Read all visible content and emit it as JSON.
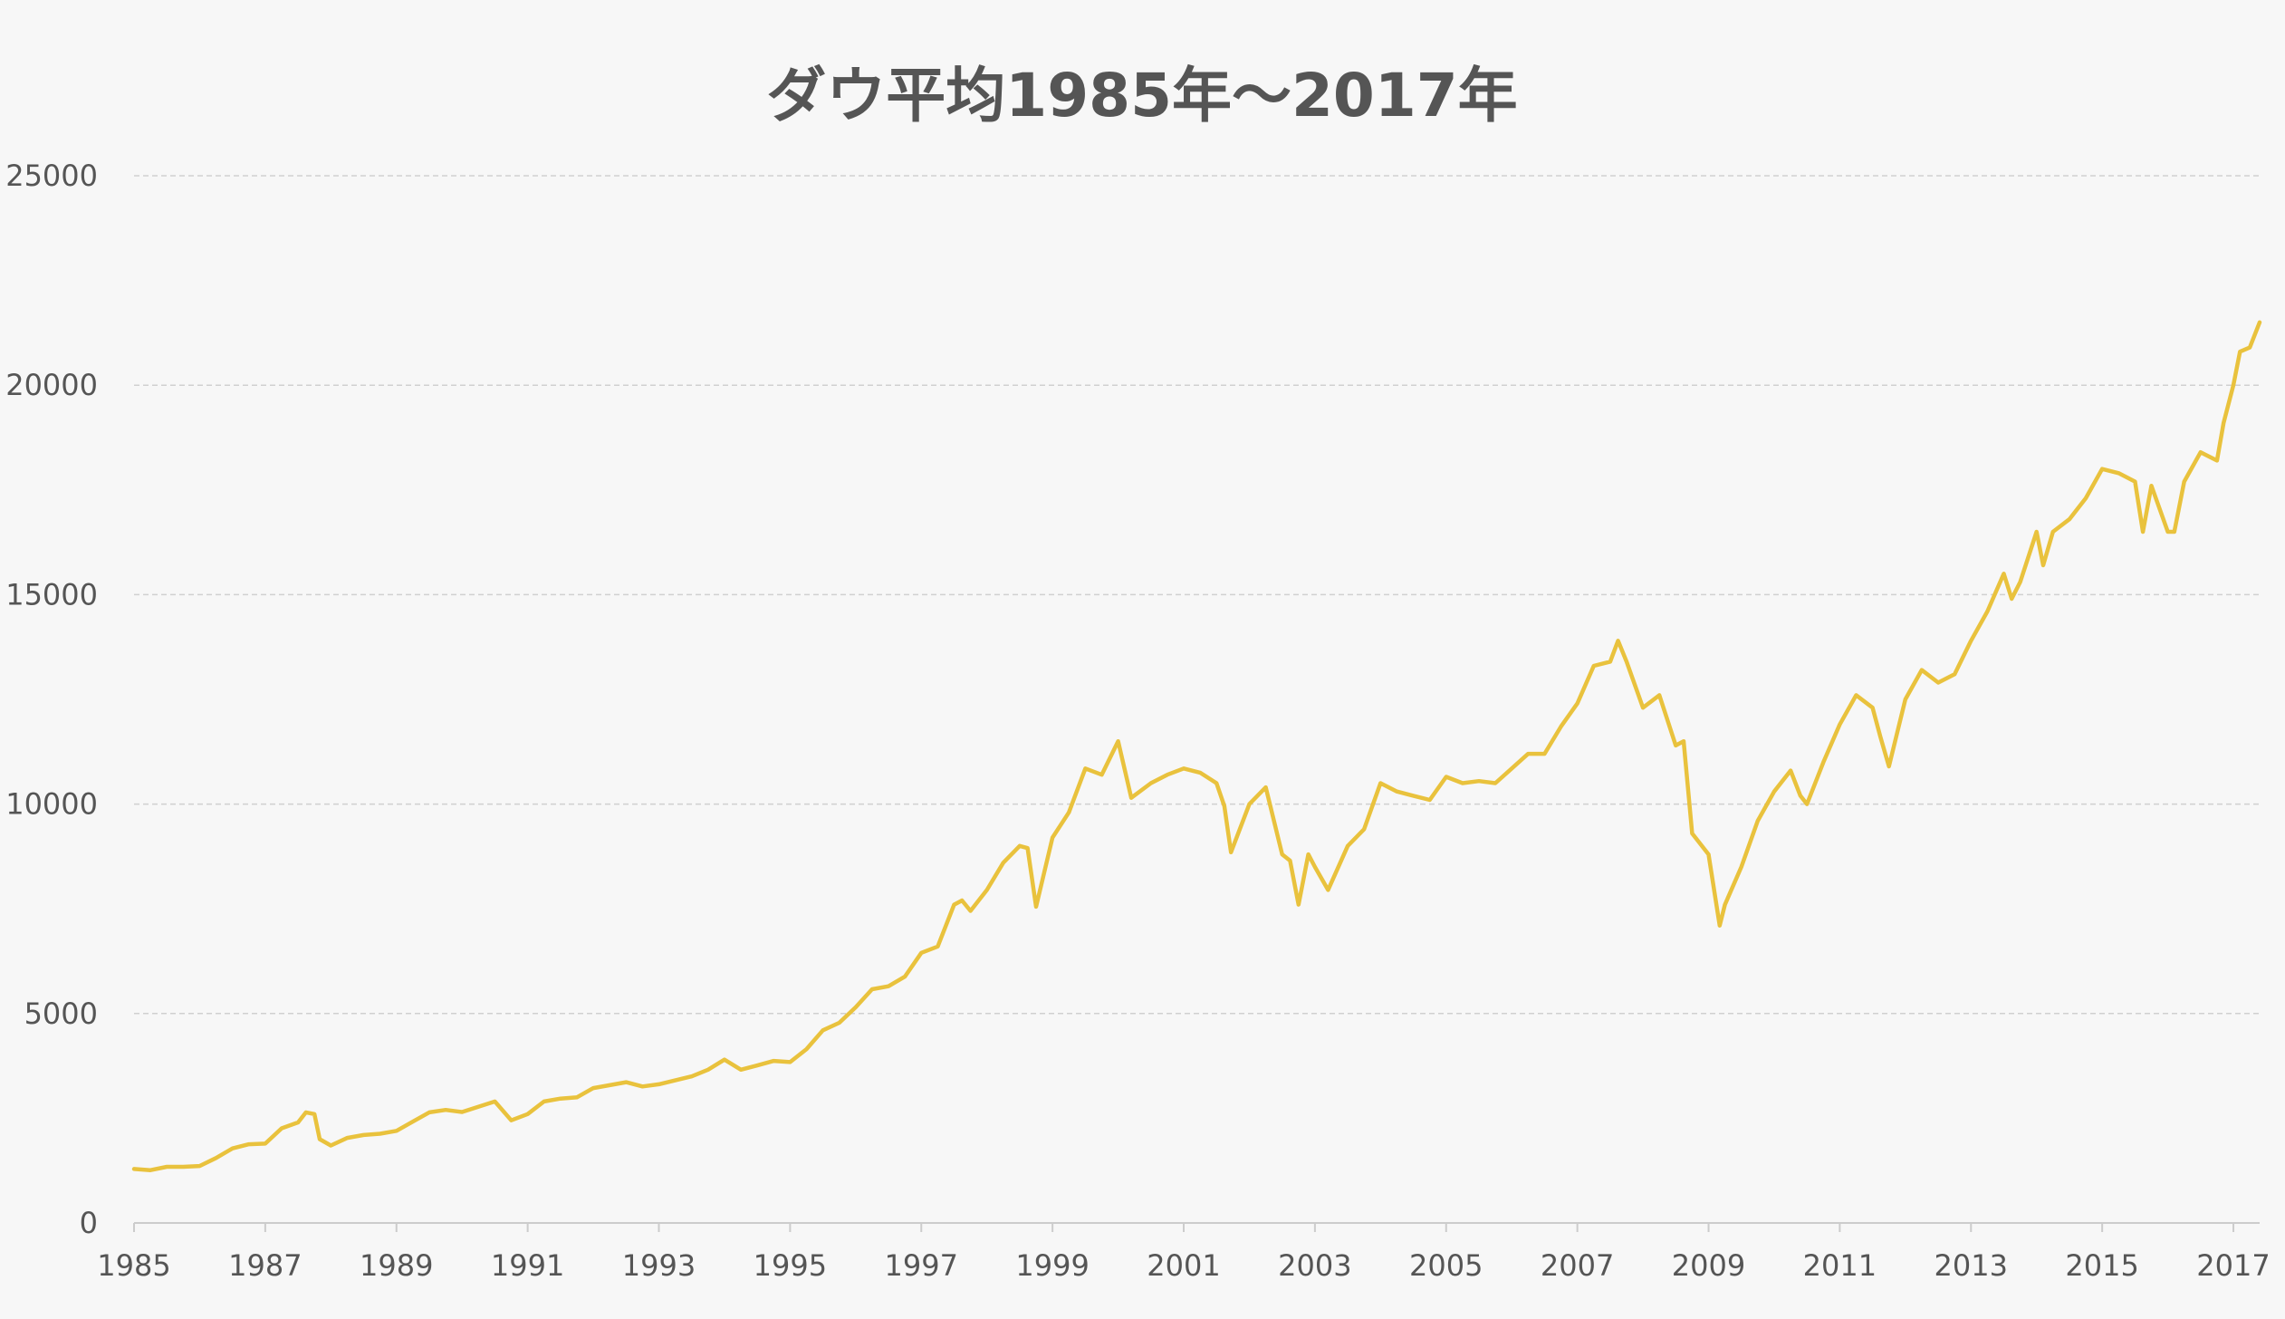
{
  "chart_data": {
    "type": "line",
    "title": "ダウ平均1985年〜2017年",
    "xlabel": "",
    "ylabel": "",
    "xlim": [
      1985.0,
      2017.4
    ],
    "ylim": [
      0,
      25000
    ],
    "grid": true,
    "legend": "none",
    "x_tick_labels": [
      "1985",
      "1987",
      "1989",
      "1991",
      "1993",
      "1995",
      "1997",
      "1999",
      "2001",
      "2003",
      "2005",
      "2007",
      "2009",
      "2011",
      "2013",
      "2015",
      "2017"
    ],
    "y_tick_labels": [
      "0",
      "5000",
      "10000",
      "15000",
      "20000",
      "25000"
    ],
    "series": [
      {
        "color": "#e9c23d",
        "points": [
          [
            1985.0,
            1290
          ],
          [
            1985.25,
            1260
          ],
          [
            1985.5,
            1340
          ],
          [
            1985.75,
            1340
          ],
          [
            1986.0,
            1360
          ],
          [
            1986.25,
            1550
          ],
          [
            1986.5,
            1780
          ],
          [
            1986.75,
            1880
          ],
          [
            1987.0,
            1895
          ],
          [
            1987.25,
            2260
          ],
          [
            1987.5,
            2400
          ],
          [
            1987.62,
            2640
          ],
          [
            1987.75,
            2600
          ],
          [
            1987.83,
            2000
          ],
          [
            1988.0,
            1850
          ],
          [
            1988.25,
            2030
          ],
          [
            1988.5,
            2100
          ],
          [
            1988.75,
            2130
          ],
          [
            1989.0,
            2200
          ],
          [
            1989.25,
            2420
          ],
          [
            1989.5,
            2640
          ],
          [
            1989.75,
            2700
          ],
          [
            1990.0,
            2650
          ],
          [
            1990.5,
            2900
          ],
          [
            1990.75,
            2450
          ],
          [
            1991.0,
            2600
          ],
          [
            1991.25,
            2900
          ],
          [
            1991.5,
            2970
          ],
          [
            1991.75,
            3000
          ],
          [
            1992.0,
            3220
          ],
          [
            1992.5,
            3360
          ],
          [
            1992.75,
            3260
          ],
          [
            1993.0,
            3310
          ],
          [
            1993.5,
            3500
          ],
          [
            1993.75,
            3660
          ],
          [
            1994.0,
            3900
          ],
          [
            1994.25,
            3660
          ],
          [
            1994.5,
            3760
          ],
          [
            1994.75,
            3870
          ],
          [
            1995.0,
            3840
          ],
          [
            1995.25,
            4150
          ],
          [
            1995.5,
            4600
          ],
          [
            1995.75,
            4780
          ],
          [
            1996.0,
            5150
          ],
          [
            1996.25,
            5580
          ],
          [
            1996.5,
            5650
          ],
          [
            1996.75,
            5880
          ],
          [
            1997.0,
            6450
          ],
          [
            1997.25,
            6600
          ],
          [
            1997.5,
            7600
          ],
          [
            1997.62,
            7700
          ],
          [
            1997.75,
            7450
          ],
          [
            1998.0,
            7950
          ],
          [
            1998.25,
            8600
          ],
          [
            1998.5,
            9000
          ],
          [
            1998.62,
            8950
          ],
          [
            1998.75,
            7550
          ],
          [
            1999.0,
            9200
          ],
          [
            1999.25,
            9800
          ],
          [
            1999.5,
            10850
          ],
          [
            1999.75,
            10700
          ],
          [
            2000.0,
            11500
          ],
          [
            2000.2,
            10150
          ],
          [
            2000.5,
            10500
          ],
          [
            2000.75,
            10700
          ],
          [
            2001.0,
            10850
          ],
          [
            2001.25,
            10750
          ],
          [
            2001.5,
            10500
          ],
          [
            2001.62,
            9950
          ],
          [
            2001.72,
            8850
          ],
          [
            2002.0,
            10000
          ],
          [
            2002.25,
            10400
          ],
          [
            2002.5,
            8800
          ],
          [
            2002.62,
            8650
          ],
          [
            2002.75,
            7600
          ],
          [
            2002.9,
            8800
          ],
          [
            2003.0,
            8500
          ],
          [
            2003.2,
            7950
          ],
          [
            2003.5,
            9000
          ],
          [
            2003.75,
            9400
          ],
          [
            2004.0,
            10500
          ],
          [
            2004.25,
            10300
          ],
          [
            2004.5,
            10200
          ],
          [
            2004.75,
            10100
          ],
          [
            2005.0,
            10650
          ],
          [
            2005.25,
            10500
          ],
          [
            2005.5,
            10550
          ],
          [
            2005.75,
            10500
          ],
          [
            2006.0,
            10850
          ],
          [
            2006.25,
            11200
          ],
          [
            2006.5,
            11200
          ],
          [
            2006.75,
            11850
          ],
          [
            2007.0,
            12400
          ],
          [
            2007.25,
            13300
          ],
          [
            2007.5,
            13400
          ],
          [
            2007.62,
            13900
          ],
          [
            2007.75,
            13400
          ],
          [
            2008.0,
            12300
          ],
          [
            2008.25,
            12600
          ],
          [
            2008.5,
            11400
          ],
          [
            2008.62,
            11500
          ],
          [
            2008.75,
            9300
          ],
          [
            2009.0,
            8800
          ],
          [
            2009.17,
            7100
          ],
          [
            2009.25,
            7600
          ],
          [
            2009.5,
            8500
          ],
          [
            2009.75,
            9600
          ],
          [
            2010.0,
            10300
          ],
          [
            2010.25,
            10800
          ],
          [
            2010.4,
            10200
          ],
          [
            2010.5,
            10000
          ],
          [
            2010.75,
            11000
          ],
          [
            2011.0,
            11900
          ],
          [
            2011.25,
            12600
          ],
          [
            2011.5,
            12300
          ],
          [
            2011.62,
            11600
          ],
          [
            2011.75,
            10900
          ],
          [
            2012.0,
            12500
          ],
          [
            2012.25,
            13200
          ],
          [
            2012.5,
            12900
          ],
          [
            2012.75,
            13100
          ],
          [
            2013.0,
            13900
          ],
          [
            2013.25,
            14600
          ],
          [
            2013.5,
            15500
          ],
          [
            2013.62,
            14900
          ],
          [
            2013.75,
            15300
          ],
          [
            2014.0,
            16500
          ],
          [
            2014.1,
            15700
          ],
          [
            2014.25,
            16500
          ],
          [
            2014.5,
            16800
          ],
          [
            2014.75,
            17300
          ],
          [
            2015.0,
            18000
          ],
          [
            2015.25,
            17900
          ],
          [
            2015.5,
            17700
          ],
          [
            2015.62,
            16500
          ],
          [
            2015.75,
            17600
          ],
          [
            2016.0,
            16500
          ],
          [
            2016.1,
            16500
          ],
          [
            2016.25,
            17700
          ],
          [
            2016.5,
            18400
          ],
          [
            2016.75,
            18200
          ],
          [
            2016.85,
            19100
          ],
          [
            2017.0,
            20000
          ],
          [
            2017.1,
            20800
          ],
          [
            2017.25,
            20900
          ],
          [
            2017.4,
            21500
          ]
        ]
      }
    ]
  }
}
